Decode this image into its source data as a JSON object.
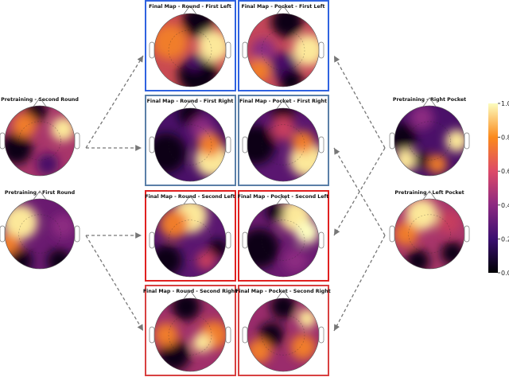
{
  "panels": [
    {
      "title": "Final Map - Round - First Left",
      "frame": "#2f62e0"
    },
    {
      "title": "Final Map - Pocket - First Left",
      "frame": "#2f62e0"
    },
    {
      "title": "Final Map - Round - First Right",
      "frame": "#5a7fa8"
    },
    {
      "title": "Final Map - Pocket - First Right",
      "frame": "#5a7fa8"
    },
    {
      "title": "Final Map - Round - Second Left",
      "frame": "#e02020"
    },
    {
      "title": "Final Map - Pocket - Second Left",
      "frame": "#e02020"
    },
    {
      "title": "Final Map - Round - Second Right",
      "frame": "#d84040"
    },
    {
      "title": "Final Map - Pocket - Second Right",
      "frame": "#d84040"
    }
  ],
  "pretraining": [
    {
      "title": "Pretraining - Second Round"
    },
    {
      "title": "Pretraining - First Round"
    },
    {
      "title": "Pretraining - Right Pocket"
    },
    {
      "title": "Pretraining - Left Pocket"
    }
  ],
  "colorbar": {
    "ticks": [
      "0.0",
      "0.2",
      "0.4",
      "0.6",
      "0.8",
      "1.0"
    ],
    "range": [
      0,
      1
    ],
    "colormap": "inferno"
  }
}
